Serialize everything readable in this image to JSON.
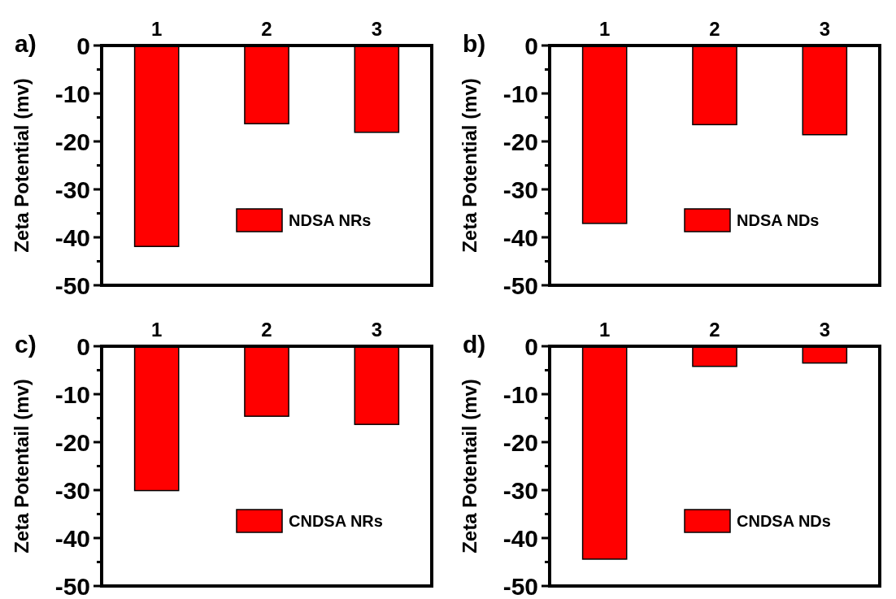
{
  "chart_data": [
    {
      "type": "bar",
      "title": "a)",
      "ylabel": "Zeta Potential (mv)",
      "categories": [
        "1",
        "2",
        "3"
      ],
      "series": [
        {
          "name": "NDSA NRs",
          "color": "#ff0000",
          "values": [
            -41.9,
            -16.3,
            -18.1
          ]
        }
      ],
      "ylim": [
        -50,
        0
      ],
      "yticks": [
        0,
        {
          "value": -5,
          "label": null
        },
        -10,
        {
          "value": -15,
          "label": null
        },
        -20,
        {
          "value": -25,
          "label": null
        },
        -30,
        {
          "value": -35,
          "label": null
        },
        -40,
        {
          "value": -45,
          "label": null
        },
        -50
      ],
      "legend": "bottom right"
    },
    {
      "type": "bar",
      "title": "b)",
      "ylabel": "Zeta Potential (mv)",
      "categories": [
        "1",
        "2",
        "3"
      ],
      "series": [
        {
          "name": "NDSA NDs",
          "color": "#ff0000",
          "values": [
            -37.1,
            -16.5,
            -18.6
          ]
        }
      ],
      "ylim": [
        -50,
        0
      ],
      "yticks": [
        0,
        {
          "value": -5,
          "label": null
        },
        -10,
        {
          "value": -15,
          "label": null
        },
        -20,
        {
          "value": -25,
          "label": null
        },
        -30,
        {
          "value": -35,
          "label": null
        },
        -40,
        {
          "value": -45,
          "label": null
        },
        -50
      ],
      "legend": "bottom right"
    },
    {
      "type": "bar",
      "title": "c)",
      "ylabel": "Zeta Potentail (mv)",
      "categories": [
        "1",
        "2",
        "3"
      ],
      "series": [
        {
          "name": "CNDSA NRs",
          "color": "#ff0000",
          "values": [
            -30.1,
            -14.6,
            -16.3
          ]
        }
      ],
      "ylim": [
        -50,
        0
      ],
      "yticks": [
        0,
        {
          "value": -5,
          "label": null
        },
        -10,
        {
          "value": -15,
          "label": null
        },
        -20,
        {
          "value": -25,
          "label": null
        },
        -30,
        {
          "value": -35,
          "label": null
        },
        -40,
        {
          "value": -45,
          "label": null
        },
        -50
      ],
      "legend": "bottom right"
    },
    {
      "type": "bar",
      "title": "d)",
      "ylabel": "Zeta Potentail (mv)",
      "categories": [
        "1",
        "2",
        "3"
      ],
      "series": [
        {
          "name": "CNDSA NDs",
          "color": "#ff0000",
          "values": [
            -44.4,
            -4.2,
            -3.5
          ]
        }
      ],
      "ylim": [
        -50,
        0
      ],
      "yticks": [
        0,
        {
          "value": -5,
          "label": null
        },
        -10,
        {
          "value": -15,
          "label": null
        },
        -20,
        {
          "value": -25,
          "label": null
        },
        -30,
        {
          "value": -35,
          "label": null
        },
        -40,
        {
          "value": -45,
          "label": null
        },
        -50
      ],
      "legend": "bottom right"
    }
  ]
}
